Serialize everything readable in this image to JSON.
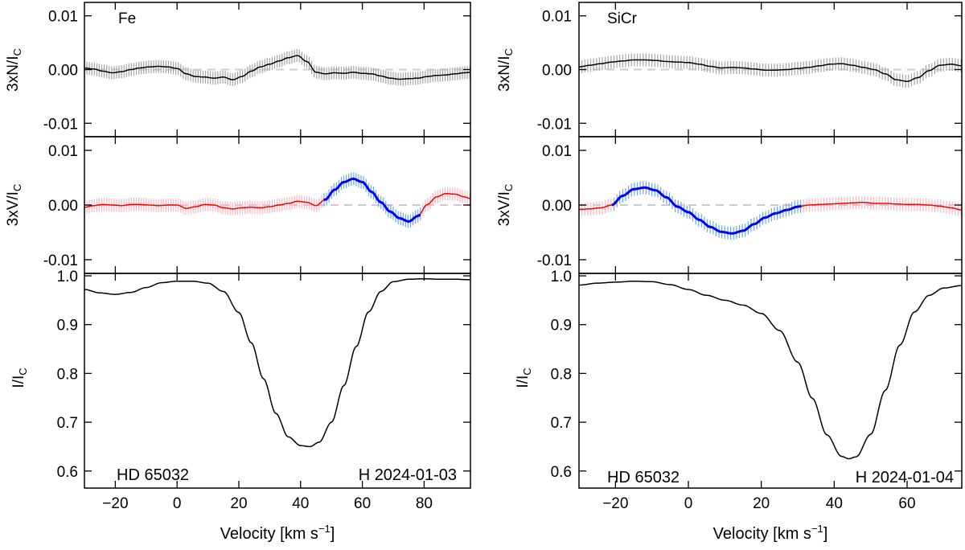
{
  "figure_type": "Stokes LSD profiles",
  "chart_data": [
    {
      "type": "line",
      "column_id": "left",
      "element_label": "Fe",
      "star_label": "HD 65032",
      "date_label": "H 2024-01-03",
      "xlabel_main": "Velocity [km s",
      "xlabel_sup": "−1",
      "xlabel_end": "]",
      "xlim": [
        -30,
        95
      ],
      "xticks": [
        -20,
        0,
        20,
        40,
        60,
        80
      ],
      "xtick_labels": [
        "−20",
        "0",
        "20",
        "40",
        "60",
        "80"
      ],
      "zoom_start": 47.5,
      "zoom_end": 79,
      "panels": {
        "N": {
          "ylabel_main": "3xN/I",
          "ylabel_sub": "C",
          "ylim": [
            -0.0125,
            0.0125
          ],
          "yticks": [
            0.01,
            0.0,
            -0.01
          ],
          "ytick_labels": [
            "0.01",
            "0.00",
            "-0.01"
          ],
          "reference_line": 0.0,
          "errorbar_halfwidth": 0.0012,
          "colors": {
            "line": "#000000",
            "errorbar": "#a6a6a6"
          },
          "x": [
            -30,
            -27,
            -24,
            -21,
            -18,
            -15,
            -12,
            -9,
            -6,
            -3,
            0,
            3,
            6,
            9,
            12,
            15,
            18,
            21,
            24,
            27,
            30,
            33,
            36,
            39,
            42,
            45,
            48,
            51,
            54,
            57,
            60,
            63,
            66,
            69,
            72,
            75,
            78,
            81,
            84,
            87,
            90,
            93,
            95
          ],
          "y": [
            0.0003,
            0.0001,
            -0.0003,
            -0.0006,
            -0.0004,
            0.0,
            0.0003,
            0.0005,
            0.0006,
            0.0005,
            0.0002,
            -0.0008,
            -0.0013,
            -0.0014,
            -0.0016,
            -0.0014,
            -0.0019,
            -0.0013,
            -0.0003,
            0.0005,
            0.001,
            0.0016,
            0.0022,
            0.0026,
            0.0015,
            -0.0005,
            -0.0008,
            -0.0006,
            -0.0007,
            -0.0005,
            -0.0007,
            -0.0008,
            -0.0012,
            -0.0016,
            -0.0018,
            -0.0017,
            -0.0016,
            -0.0013,
            -0.0011,
            -0.001,
            -0.0008,
            -0.0006,
            -0.0005
          ]
        },
        "V": {
          "ylabel_main": "3xV/I",
          "ylabel_sub": "C",
          "ylim": [
            -0.0125,
            0.0125
          ],
          "yticks": [
            0.01,
            0.0,
            -0.01
          ],
          "ytick_labels": [
            "0.01",
            "0.00",
            "-0.01"
          ],
          "reference_line": 0.0,
          "errorbar_halfwidth": 0.0012,
          "colors": {
            "line": "#ff0000",
            "errorbar": "#ffb6c1",
            "zoom_line": "#0000ff",
            "zoom_errorbar": "#6fa8f5"
          },
          "x": [
            -30,
            -27,
            -24,
            -21,
            -18,
            -15,
            -12,
            -9,
            -6,
            -3,
            0,
            3,
            6,
            9,
            12,
            15,
            18,
            21,
            24,
            27,
            30,
            33,
            36,
            39,
            42,
            45,
            48,
            51,
            54,
            57,
            60,
            63,
            66,
            69,
            72,
            75,
            78,
            81,
            84,
            87,
            90,
            93,
            95
          ],
          "y": [
            -0.0004,
            -0.0001,
            0.0001,
            0.0,
            -0.0001,
            0.0001,
            0.0001,
            0.0,
            -0.0001,
            0.0,
            0.0,
            -0.0006,
            -0.0003,
            0.0001,
            0.0,
            -0.0005,
            -0.0007,
            -0.0005,
            -0.0004,
            -0.0005,
            -0.0003,
            0.0,
            0.0003,
            0.0007,
            0.0005,
            -0.0001,
            0.001,
            0.0028,
            0.0042,
            0.0048,
            0.0042,
            0.0024,
            0.0005,
            -0.0012,
            -0.0024,
            -0.003,
            -0.002,
            0.0001,
            0.0015,
            0.0021,
            0.002,
            0.0015,
            0.0012
          ]
        },
        "I": {
          "ylabel_main": "I/I",
          "ylabel_sub": "C",
          "ylim": [
            0.565,
            1.005
          ],
          "yticks": [
            1.0,
            0.9,
            0.8,
            0.7,
            0.6
          ],
          "ytick_labels": [
            "1.0",
            "0.9",
            "0.8",
            "0.7",
            "0.6"
          ],
          "colors": {
            "line": "#000000"
          },
          "x": [
            -30,
            -25,
            -20,
            -15,
            -10,
            -5,
            0,
            5,
            10,
            15,
            20,
            24,
            28,
            32,
            36,
            40,
            43,
            46,
            50,
            54,
            58,
            62,
            66,
            70,
            75,
            80,
            85,
            90,
            95
          ],
          "y": [
            0.972,
            0.965,
            0.962,
            0.966,
            0.976,
            0.986,
            0.989,
            0.989,
            0.985,
            0.968,
            0.925,
            0.863,
            0.789,
            0.718,
            0.67,
            0.652,
            0.65,
            0.659,
            0.7,
            0.775,
            0.855,
            0.926,
            0.968,
            0.988,
            0.993,
            0.994,
            0.993,
            0.993,
            0.992
          ]
        }
      }
    },
    {
      "type": "line",
      "column_id": "right",
      "element_label": "SiCr",
      "star_label": "HD 65032",
      "date_label": "H 2024-01-04",
      "xlabel_main": "Velocity [km s",
      "xlabel_sup": "−1",
      "xlabel_end": "]",
      "xlim": [
        -30,
        75
      ],
      "xticks": [
        -20,
        0,
        20,
        40,
        60
      ],
      "xtick_labels": [
        "−20",
        "0",
        "20",
        "40",
        "60"
      ],
      "zoom_start": -21,
      "zoom_end": 31,
      "panels": {
        "N": {
          "ylabel_main": "3xN/I",
          "ylabel_sub": "C",
          "ylim": [
            -0.0125,
            0.0125
          ],
          "yticks": [
            0.01,
            0.0,
            -0.01
          ],
          "ytick_labels": [
            "0.01",
            "0.00",
            "-0.01"
          ],
          "reference_line": 0.0,
          "errorbar_halfwidth": 0.0012,
          "colors": {
            "line": "#000000",
            "errorbar": "#a6a6a6"
          },
          "x": [
            -30,
            -27,
            -24,
            -21,
            -18,
            -15,
            -12,
            -9,
            -6,
            -3,
            0,
            3,
            6,
            9,
            12,
            15,
            18,
            21,
            24,
            27,
            30,
            33,
            36,
            39,
            42,
            45,
            48,
            51,
            54,
            57,
            60,
            63,
            66,
            69,
            72,
            75
          ],
          "y": [
            0.0005,
            0.0008,
            0.0011,
            0.0014,
            0.0016,
            0.0018,
            0.0018,
            0.0017,
            0.0015,
            0.0014,
            0.0013,
            0.001,
            0.0006,
            0.0003,
            0.0004,
            0.0003,
            0.0001,
            -0.0001,
            -0.0001,
            0.0,
            0.0002,
            0.0004,
            0.0007,
            0.001,
            0.0011,
            0.0008,
            0.0004,
            0.0,
            -0.0008,
            -0.0019,
            -0.0022,
            -0.0015,
            -0.0002,
            0.0008,
            0.001,
            0.0007
          ]
        },
        "V": {
          "ylabel_main": "3xV/I",
          "ylabel_sub": "C",
          "ylim": [
            -0.0125,
            0.0125
          ],
          "yticks": [
            0.01,
            0.0,
            -0.01
          ],
          "ytick_labels": [
            "0.01",
            "0.00",
            "-0.01"
          ],
          "reference_line": 0.0,
          "errorbar_halfwidth": 0.0012,
          "colors": {
            "line": "#ff0000",
            "errorbar": "#ffb6c1",
            "zoom_line": "#0000ff",
            "zoom_errorbar": "#6fa8f5"
          },
          "x": [
            -30,
            -27,
            -24,
            -21,
            -18,
            -15,
            -12,
            -9,
            -6,
            -3,
            0,
            3,
            6,
            9,
            12,
            15,
            18,
            21,
            24,
            27,
            30,
            33,
            36,
            39,
            42,
            45,
            48,
            51,
            54,
            57,
            60,
            63,
            66,
            69,
            72,
            75
          ],
          "y": [
            -0.0008,
            -0.0007,
            -0.0005,
            0.0,
            0.0017,
            0.0029,
            0.0032,
            0.0027,
            0.0014,
            -0.0003,
            -0.0013,
            -0.0027,
            -0.004,
            -0.0049,
            -0.0052,
            -0.0047,
            -0.0035,
            -0.0023,
            -0.0015,
            -0.0009,
            -0.0003,
            0.0,
            0.0001,
            0.0002,
            0.0003,
            0.0004,
            0.0005,
            0.0003,
            0.0003,
            0.0002,
            0.0001,
            0.0001,
            0.0,
            -0.0002,
            -0.0005,
            -0.0009
          ]
        },
        "I": {
          "ylabel_main": "I/I",
          "ylabel_sub": "C",
          "ylim": [
            0.565,
            1.005
          ],
          "yticks": [
            1.0,
            0.9,
            0.8,
            0.7,
            0.6
          ],
          "ytick_labels": [
            "1.0",
            "0.9",
            "0.8",
            "0.7",
            "0.6"
          ],
          "colors": {
            "line": "#000000"
          },
          "x": [
            -30,
            -25,
            -20,
            -15,
            -10,
            -5,
            0,
            5,
            10,
            15,
            20,
            25,
            30,
            34,
            38,
            42,
            44,
            46,
            50,
            54,
            58,
            62,
            66,
            70,
            75
          ],
          "y": [
            0.981,
            0.985,
            0.987,
            0.989,
            0.988,
            0.982,
            0.972,
            0.96,
            0.95,
            0.94,
            0.923,
            0.888,
            0.823,
            0.749,
            0.674,
            0.63,
            0.625,
            0.629,
            0.675,
            0.765,
            0.858,
            0.926,
            0.96,
            0.975,
            0.98
          ]
        }
      }
    }
  ]
}
